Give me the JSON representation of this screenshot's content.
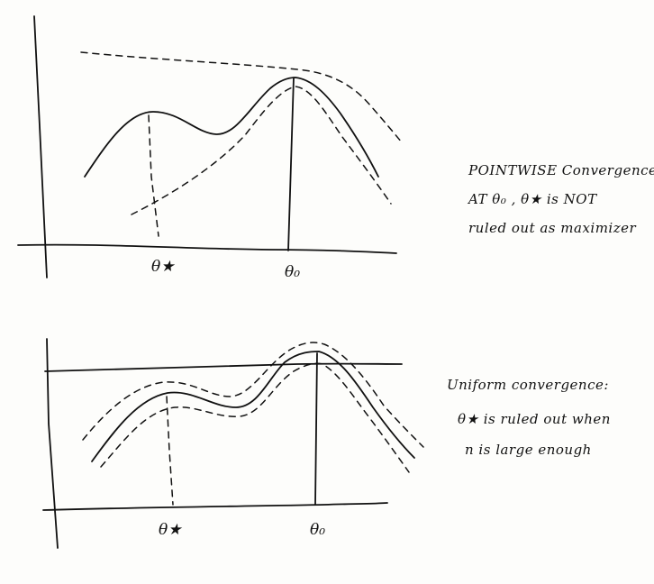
{
  "top_diagram": {
    "tick_labels": {
      "theta_star": "θ★",
      "theta_0": "θ₀"
    },
    "caption": [
      "POINTWISE Convergence",
      "AT θ₀ , θ★ is NOT",
      "ruled out as maximizer"
    ]
  },
  "bottom_diagram": {
    "tick_labels": {
      "theta_star": "θ★",
      "theta_0": "θ₀"
    },
    "caption": [
      "Uniform convergence:",
      "θ★ is ruled out when",
      "n is large enough"
    ]
  }
}
